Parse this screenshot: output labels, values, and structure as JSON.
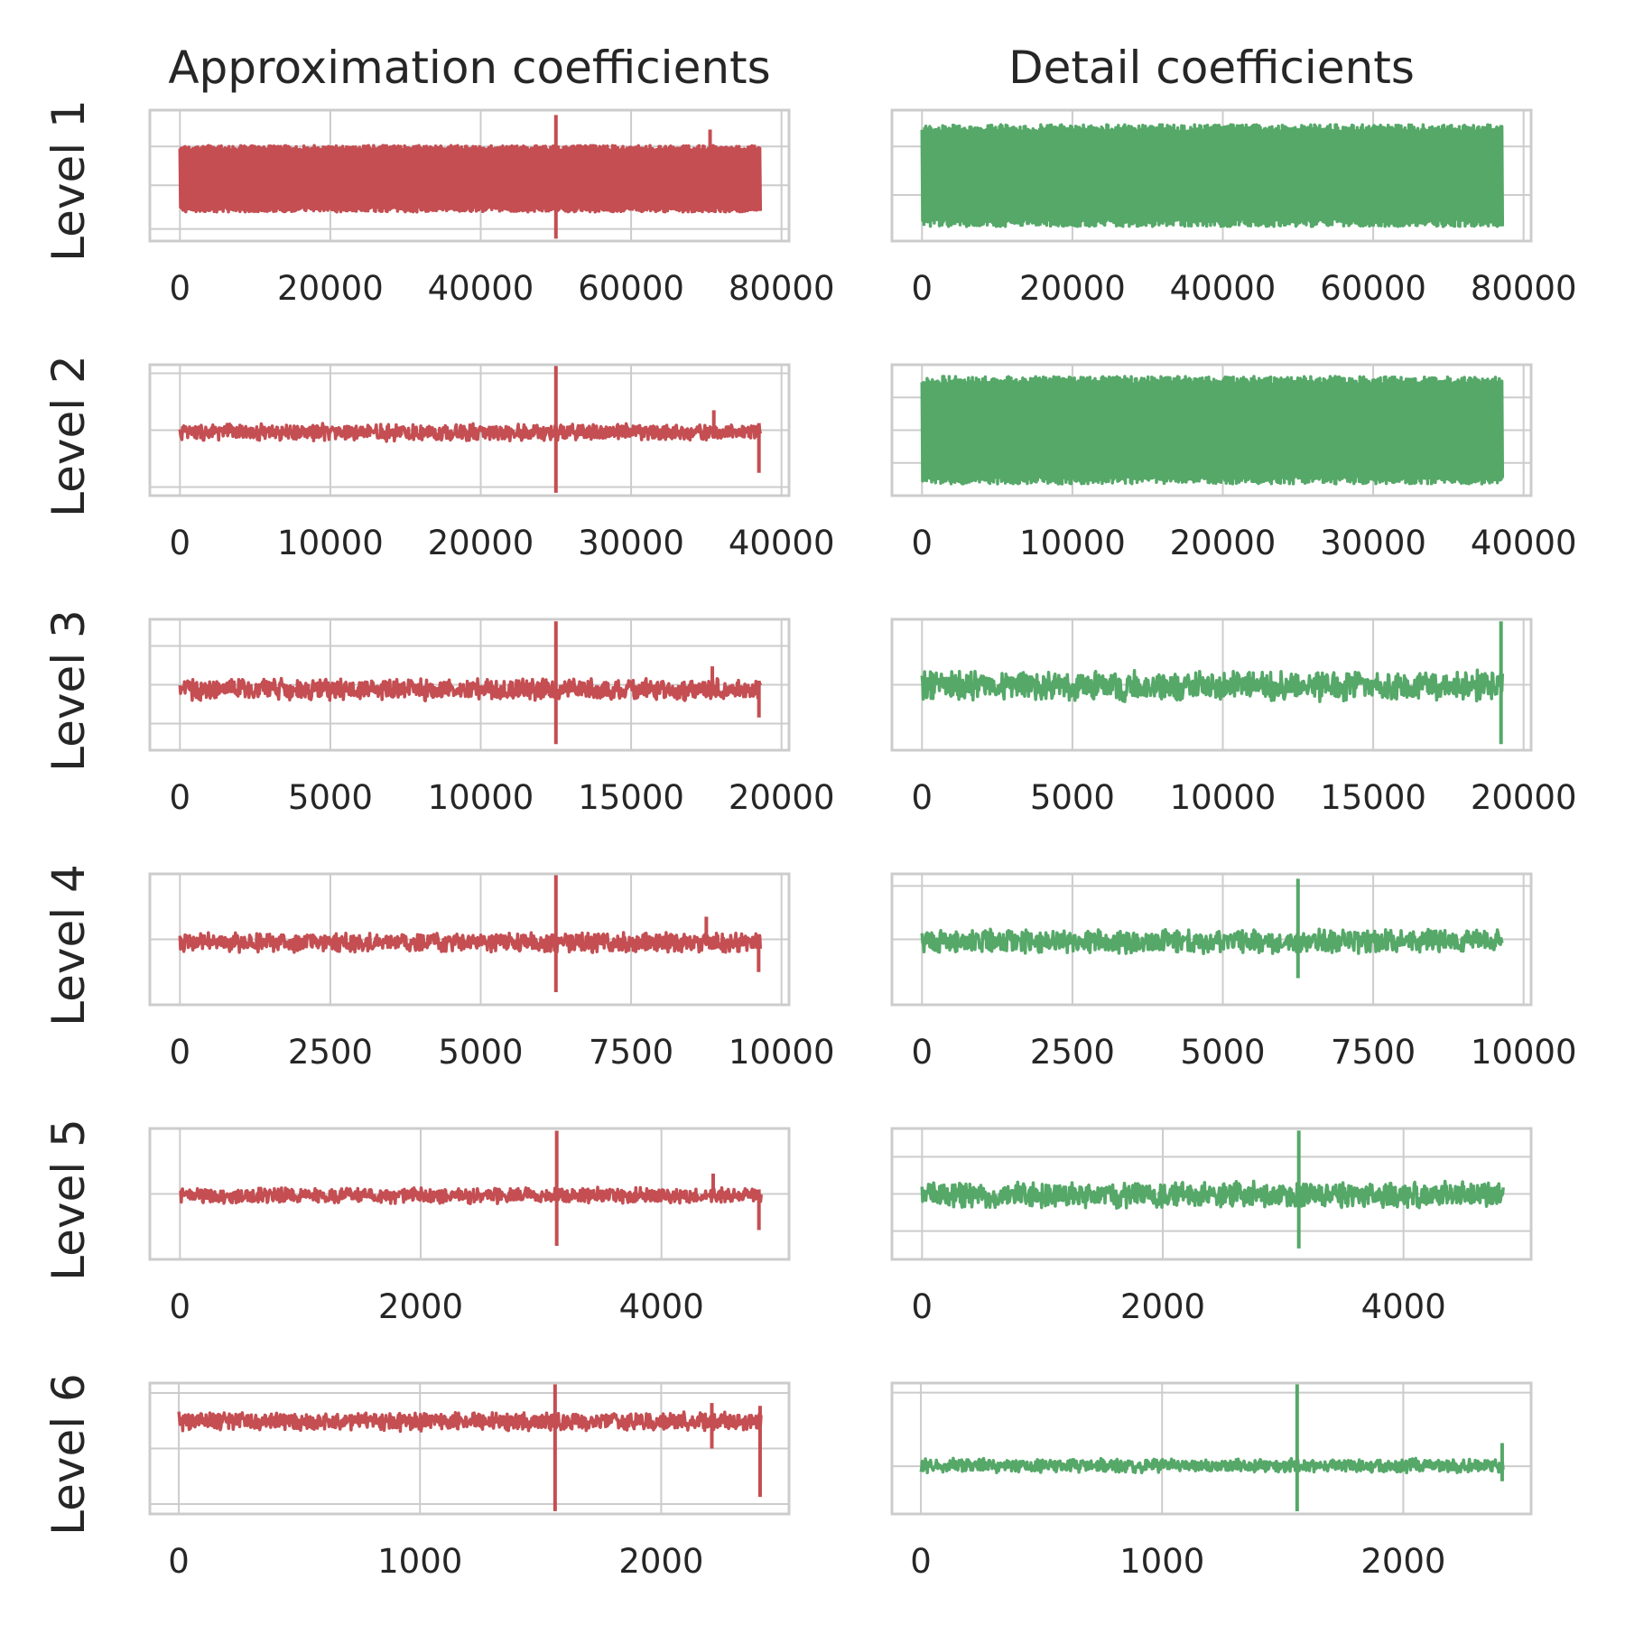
{
  "figure": {
    "column_titles": [
      "Approximation coefficients",
      "Detail coefficients"
    ],
    "row_labels": [
      "Level 1",
      "Level 2",
      "Level 3",
      "Level 4",
      "Level 5",
      "Level 6"
    ],
    "colors": {
      "approximation": "#c44e52",
      "detail": "#55a868",
      "grid": "#cccccc",
      "tick_text": "#262626",
      "background": "#ffffff"
    }
  },
  "chart_data": [
    {
      "type": "line",
      "level": 1,
      "column": "approximation",
      "x_ticks": [
        "0",
        "20000",
        "40000",
        "60000",
        "80000"
      ],
      "x_tick_values": [
        0,
        20000,
        40000,
        60000,
        80000
      ],
      "xlim": [
        -4000,
        81000
      ],
      "n_points": 77200,
      "y_ticks_shown": false,
      "ylim": [
        -1.35,
        1.35
      ],
      "y_gridlines": [
        -1.1,
        -0.2,
        0.6
      ],
      "envelope": {
        "lower": -0.75,
        "upper": 0.62
      },
      "spikes": [
        {
          "x": 50000,
          "min": -1.3,
          "max": 1.25
        },
        {
          "x": 70500,
          "min": -0.6,
          "max": 0.95
        }
      ]
    },
    {
      "type": "line",
      "level": 1,
      "column": "detail",
      "x_ticks": [
        "0",
        "20000",
        "40000",
        "60000",
        "80000"
      ],
      "x_tick_values": [
        0,
        20000,
        40000,
        60000,
        80000
      ],
      "xlim": [
        -4000,
        81000
      ],
      "n_points": 77200,
      "y_ticks_shown": false,
      "ylim": [
        -1.35,
        1.35
      ],
      "y_gridlines": [
        -0.4,
        0.6
      ],
      "envelope": {
        "lower": -1.05,
        "upper": 1.05
      },
      "spikes": []
    },
    {
      "type": "line",
      "level": 2,
      "column": "approximation",
      "x_ticks": [
        "0",
        "10000",
        "20000",
        "30000",
        "40000"
      ],
      "x_tick_values": [
        0,
        10000,
        20000,
        30000,
        40000
      ],
      "xlim": [
        -2000,
        40500
      ],
      "n_points": 38600,
      "y_ticks_shown": false,
      "ylim": [
        -2.3,
        2.3
      ],
      "y_gridlines": [
        -2.0,
        0.0,
        2.0
      ],
      "envelope": {
        "lower": -0.4,
        "upper": 0.25
      },
      "spikes": [
        {
          "x": 25000,
          "min": -2.2,
          "max": 2.3
        },
        {
          "x": 35500,
          "min": -0.3,
          "max": 0.7
        },
        {
          "x": 38500,
          "min": -1.5,
          "max": 0.25
        }
      ]
    },
    {
      "type": "line",
      "level": 2,
      "column": "detail",
      "x_ticks": [
        "0",
        "10000",
        "20000",
        "30000",
        "40000"
      ],
      "x_tick_values": [
        0,
        10000,
        20000,
        30000,
        40000
      ],
      "xlim": [
        -2000,
        40500
      ],
      "n_points": 38600,
      "y_ticks_shown": false,
      "ylim": [
        -1.4,
        1.4
      ],
      "y_gridlines": [
        -0.7,
        0.0,
        0.7
      ],
      "envelope": {
        "lower": -1.15,
        "upper": 1.15
      },
      "spikes": []
    },
    {
      "type": "line",
      "level": 3,
      "column": "approximation",
      "x_ticks": [
        "0",
        "5000",
        "10000",
        "15000",
        "20000"
      ],
      "x_tick_values": [
        0,
        5000,
        10000,
        15000,
        20000
      ],
      "xlim": [
        -1000,
        20250
      ],
      "n_points": 19300,
      "y_ticks_shown": false,
      "ylim": [
        -3.2,
        3.2
      ],
      "y_gridlines": [
        -1.9,
        0.0,
        1.9
      ],
      "envelope": {
        "lower": -0.8,
        "upper": 0.35
      },
      "spikes": [
        {
          "x": 12500,
          "min": -2.9,
          "max": 3.1
        },
        {
          "x": 17700,
          "min": -0.2,
          "max": 0.9
        },
        {
          "x": 19250,
          "min": -1.6,
          "max": 0.2
        }
      ]
    },
    {
      "type": "line",
      "level": 3,
      "column": "detail",
      "x_ticks": [
        "0",
        "5000",
        "10000",
        "15000",
        "20000"
      ],
      "x_tick_values": [
        0,
        5000,
        10000,
        15000,
        20000
      ],
      "xlim": [
        -1000,
        20250
      ],
      "n_points": 19300,
      "y_ticks_shown": false,
      "ylim": [
        -3.2,
        3.2
      ],
      "y_gridlines": [
        0.0
      ],
      "envelope": {
        "lower": -0.85,
        "upper": 0.75
      },
      "spikes": [
        {
          "x": 19250,
          "min": -2.9,
          "max": 3.1
        }
      ]
    },
    {
      "type": "line",
      "level": 4,
      "column": "approximation",
      "x_ticks": [
        "0",
        "2500",
        "5000",
        "7500",
        "10000"
      ],
      "x_tick_values": [
        0,
        2500,
        5000,
        7500,
        10000
      ],
      "xlim": [
        -500,
        10125
      ],
      "n_points": 9650,
      "y_ticks_shown": false,
      "ylim": [
        -2.6,
        2.6
      ],
      "y_gridlines": [
        0.0
      ],
      "envelope": {
        "lower": -0.55,
        "upper": 0.3
      },
      "spikes": [
        {
          "x": 6250,
          "min": -2.1,
          "max": 2.6
        },
        {
          "x": 8750,
          "min": -0.2,
          "max": 0.9
        },
        {
          "x": 9620,
          "min": -1.3,
          "max": 0.2
        }
      ]
    },
    {
      "type": "line",
      "level": 4,
      "column": "detail",
      "x_ticks": [
        "0",
        "2500",
        "5000",
        "7500",
        "10000"
      ],
      "x_tick_values": [
        0,
        2500,
        5000,
        7500,
        10000
      ],
      "xlim": [
        -500,
        10125
      ],
      "n_points": 9650,
      "y_ticks_shown": false,
      "ylim": [
        -2.7,
        2.7
      ],
      "y_gridlines": [
        0.0,
        2.2
      ],
      "envelope": {
        "lower": -0.6,
        "upper": 0.45
      },
      "spikes": [
        {
          "x": 6250,
          "min": -1.6,
          "max": 2.5
        }
      ]
    },
    {
      "type": "line",
      "level": 5,
      "column": "approximation",
      "x_ticks": [
        "0",
        "2000",
        "4000"
      ],
      "x_tick_values": [
        0,
        2000,
        4000
      ],
      "xlim": [
        -250,
        5060
      ],
      "n_points": 4830,
      "y_ticks_shown": false,
      "ylim": [
        -2.9,
        2.9
      ],
      "y_gridlines": [
        0.0
      ],
      "envelope": {
        "lower": -0.45,
        "upper": 0.3
      },
      "spikes": [
        {
          "x": 3130,
          "min": -2.3,
          "max": 2.8
        },
        {
          "x": 4430,
          "min": -0.2,
          "max": 0.9
        },
        {
          "x": 4810,
          "min": -1.6,
          "max": 0.2
        }
      ]
    },
    {
      "type": "line",
      "level": 5,
      "column": "detail",
      "x_ticks": [
        "0",
        "2000",
        "4000"
      ],
      "x_tick_values": [
        0,
        2000,
        4000
      ],
      "xlim": [
        -250,
        5060
      ],
      "n_points": 4830,
      "y_ticks_shown": false,
      "ylim": [
        -3.0,
        3.0
      ],
      "y_gridlines": [
        -1.7,
        0.0,
        1.7
      ],
      "envelope": {
        "lower": -0.7,
        "upper": 0.6
      },
      "spikes": [
        {
          "x": 3130,
          "min": -2.5,
          "max": 2.9
        }
      ]
    },
    {
      "type": "line",
      "level": 6,
      "column": "approximation",
      "x_ticks": [
        "0",
        "1000",
        "2000"
      ],
      "x_tick_values": [
        0,
        1000,
        2000
      ],
      "xlim": [
        -120,
        2530
      ],
      "n_points": 2415,
      "y_ticks_shown": false,
      "ylim": [
        -2.3,
        2.3
      ],
      "y_gridlines": [
        -1.95,
        0.0,
        1.95
      ],
      "envelope": {
        "lower": 0.6,
        "upper": 1.3
      },
      "spikes": [
        {
          "x": 1560,
          "min": -2.2,
          "max": 2.3
        },
        {
          "x": 2210,
          "min": 0.0,
          "max": 1.6
        },
        {
          "x": 2410,
          "min": -1.7,
          "max": 1.5
        }
      ]
    },
    {
      "type": "line",
      "level": 6,
      "column": "detail",
      "x_ticks": [
        "0",
        "1000",
        "2000"
      ],
      "x_tick_values": [
        0,
        1000,
        2000
      ],
      "xlim": [
        -120,
        2530
      ],
      "n_points": 2415,
      "y_ticks_shown": false,
      "ylim": [
        -2.4,
        2.4
      ],
      "y_gridlines": [
        -0.65,
        2.05
      ],
      "envelope": {
        "lower": -0.9,
        "upper": -0.35
      },
      "spikes": [
        {
          "x": 1560,
          "min": -2.3,
          "max": 2.35
        },
        {
          "x": 2410,
          "min": -1.2,
          "max": 0.2
        }
      ]
    }
  ]
}
